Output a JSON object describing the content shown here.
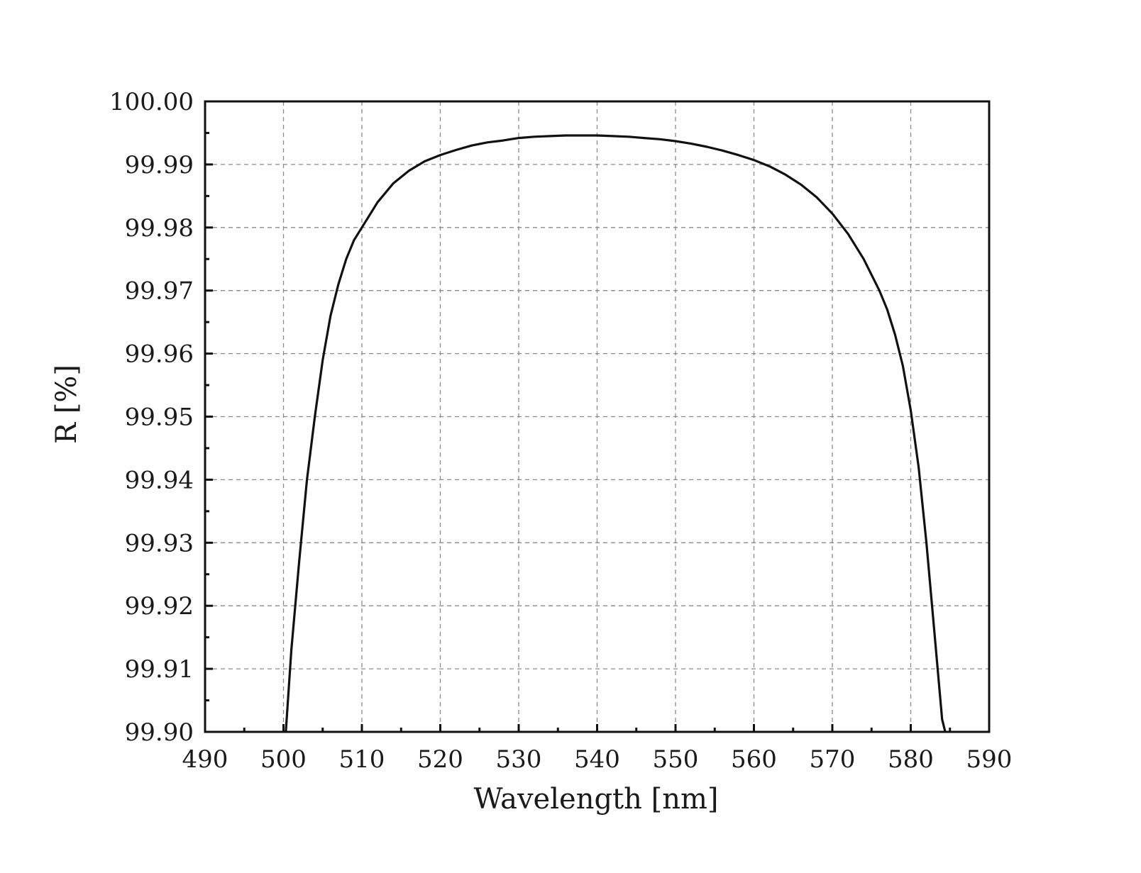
{
  "chart_data": {
    "type": "line",
    "title": "",
    "xlabel": "Wavelength [nm]",
    "ylabel": "R [%]",
    "xlim": [
      490,
      590
    ],
    "ylim": [
      99.9,
      100.0
    ],
    "grid": true,
    "x_ticks": [
      490,
      500,
      510,
      520,
      530,
      540,
      550,
      560,
      570,
      580,
      590
    ],
    "x_tick_labels": [
      "490",
      "500",
      "510",
      "520",
      "530",
      "540",
      "550",
      "560",
      "570",
      "580",
      "590"
    ],
    "y_ticks": [
      99.9,
      99.91,
      99.92,
      99.93,
      99.94,
      99.95,
      99.96,
      99.97,
      99.98,
      99.99,
      100.0
    ],
    "y_tick_labels": [
      "99.90",
      "99.91",
      "99.92",
      "99.93",
      "99.94",
      "99.95",
      "99.96",
      "99.97",
      "99.98",
      "99.99",
      "100.00"
    ],
    "series": [
      {
        "color": "#111111",
        "x": [
          500.3,
          501.0,
          502.0,
          503.0,
          504.0,
          505.0,
          506.0,
          507.0,
          508.0,
          509.0,
          510.0,
          512.0,
          514.0,
          516.0,
          518.0,
          520.0,
          522.0,
          524.0,
          526.0,
          528.0,
          530.0,
          532.0,
          534.0,
          536.0,
          538.0,
          540.0,
          542.0,
          544.0,
          546.0,
          548.0,
          550.0,
          552.0,
          554.0,
          556.0,
          558.0,
          560.0,
          562.0,
          564.0,
          566.0,
          568.0,
          570.0,
          572.0,
          574.0,
          576.0,
          577.0,
          578.0,
          579.0,
          580.0,
          581.0,
          582.0,
          583.0,
          584.0,
          584.4
        ],
        "y": [
          99.9,
          99.913,
          99.927,
          99.94,
          99.95,
          99.959,
          99.966,
          99.971,
          99.975,
          99.978,
          99.98,
          99.984,
          99.987,
          99.989,
          99.9905,
          99.9915,
          99.9923,
          99.993,
          99.9935,
          99.9938,
          99.9942,
          99.9944,
          99.9945,
          99.9946,
          99.9946,
          99.9946,
          99.9945,
          99.9944,
          99.9942,
          99.994,
          99.9937,
          99.9933,
          99.9928,
          99.9922,
          99.9915,
          99.9907,
          99.9897,
          99.9884,
          99.9868,
          99.9848,
          99.9822,
          99.979,
          99.975,
          99.97,
          99.967,
          99.963,
          99.958,
          99.951,
          99.942,
          99.93,
          99.916,
          99.902,
          99.9
        ]
      }
    ]
  }
}
